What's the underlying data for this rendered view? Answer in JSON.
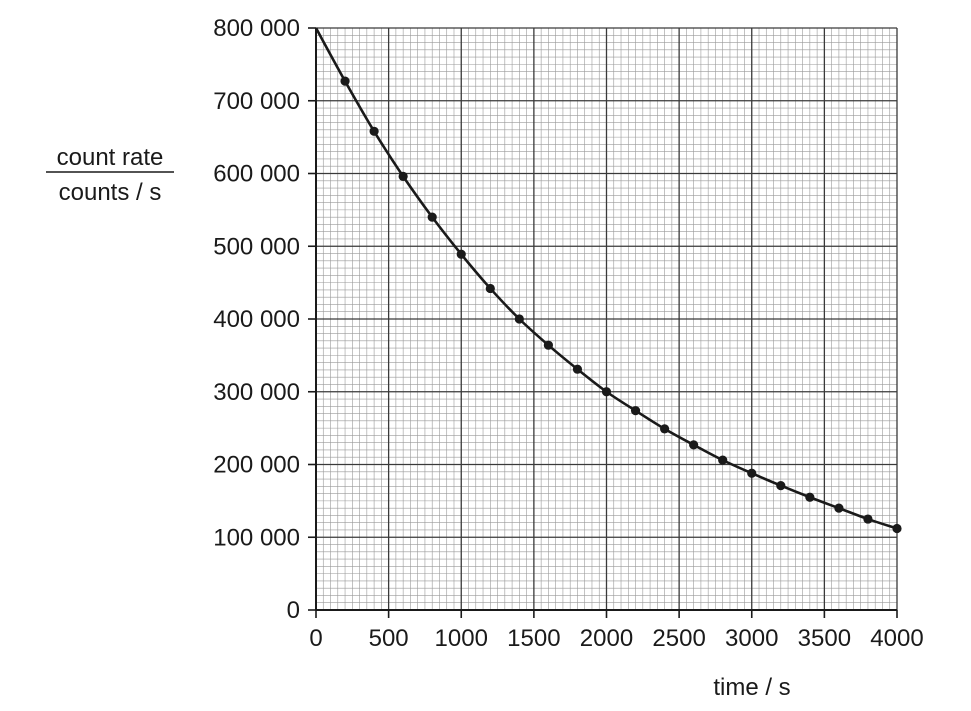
{
  "chart_data": {
    "type": "line",
    "title": "",
    "ylabel_numerator": "count rate",
    "ylabel_denominator": "counts / s",
    "xlabel": "time / s",
    "xlim": [
      0,
      4000
    ],
    "ylim": [
      0,
      800000
    ],
    "x_major_step": 500,
    "y_major_step": 100000,
    "x_minor_step": 50,
    "y_minor_step": 10000,
    "grid": true,
    "legend": "none",
    "x_tick_labels": [
      "0",
      "500",
      "1000",
      "1500",
      "2000",
      "2500",
      "3000",
      "3500",
      "4000"
    ],
    "y_tick_labels": [
      "0",
      "100 000",
      "200 000",
      "300 000",
      "400 000",
      "500 000",
      "600 000",
      "700 000",
      "800 000"
    ],
    "series": [
      {
        "x": [
          200,
          400,
          600,
          800,
          1000,
          1200,
          1400,
          1600,
          1800,
          2000,
          2200,
          2400,
          2600,
          2800,
          3000,
          3200,
          3400,
          3600,
          3800,
          4000
        ],
        "y": [
          727000,
          658000,
          596000,
          540000,
          489000,
          442000,
          400000,
          364000,
          331000,
          300000,
          274000,
          249000,
          227000,
          206000,
          188000,
          171000,
          155000,
          140000,
          125000,
          112000
        ],
        "curve": [
          [
            0,
            800000
          ],
          [
            200,
            727000
          ],
          [
            400,
            658000
          ],
          [
            600,
            596000
          ],
          [
            800,
            540000
          ],
          [
            1000,
            489000
          ],
          [
            1200,
            442000
          ],
          [
            1400,
            400000
          ],
          [
            1600,
            364000
          ],
          [
            1800,
            331000
          ],
          [
            2000,
            300000
          ],
          [
            2200,
            274000
          ],
          [
            2400,
            249000
          ],
          [
            2600,
            227000
          ],
          [
            2800,
            206000
          ],
          [
            3000,
            188000
          ],
          [
            3200,
            171000
          ],
          [
            3400,
            155000
          ],
          [
            3600,
            140000
          ],
          [
            3800,
            125000
          ],
          [
            4000,
            112000
          ]
        ]
      }
    ],
    "colors": {
      "ink": "#1a1a1a",
      "minor_grid": "#9a9a9a",
      "major_grid": "#3a3a3a"
    }
  }
}
